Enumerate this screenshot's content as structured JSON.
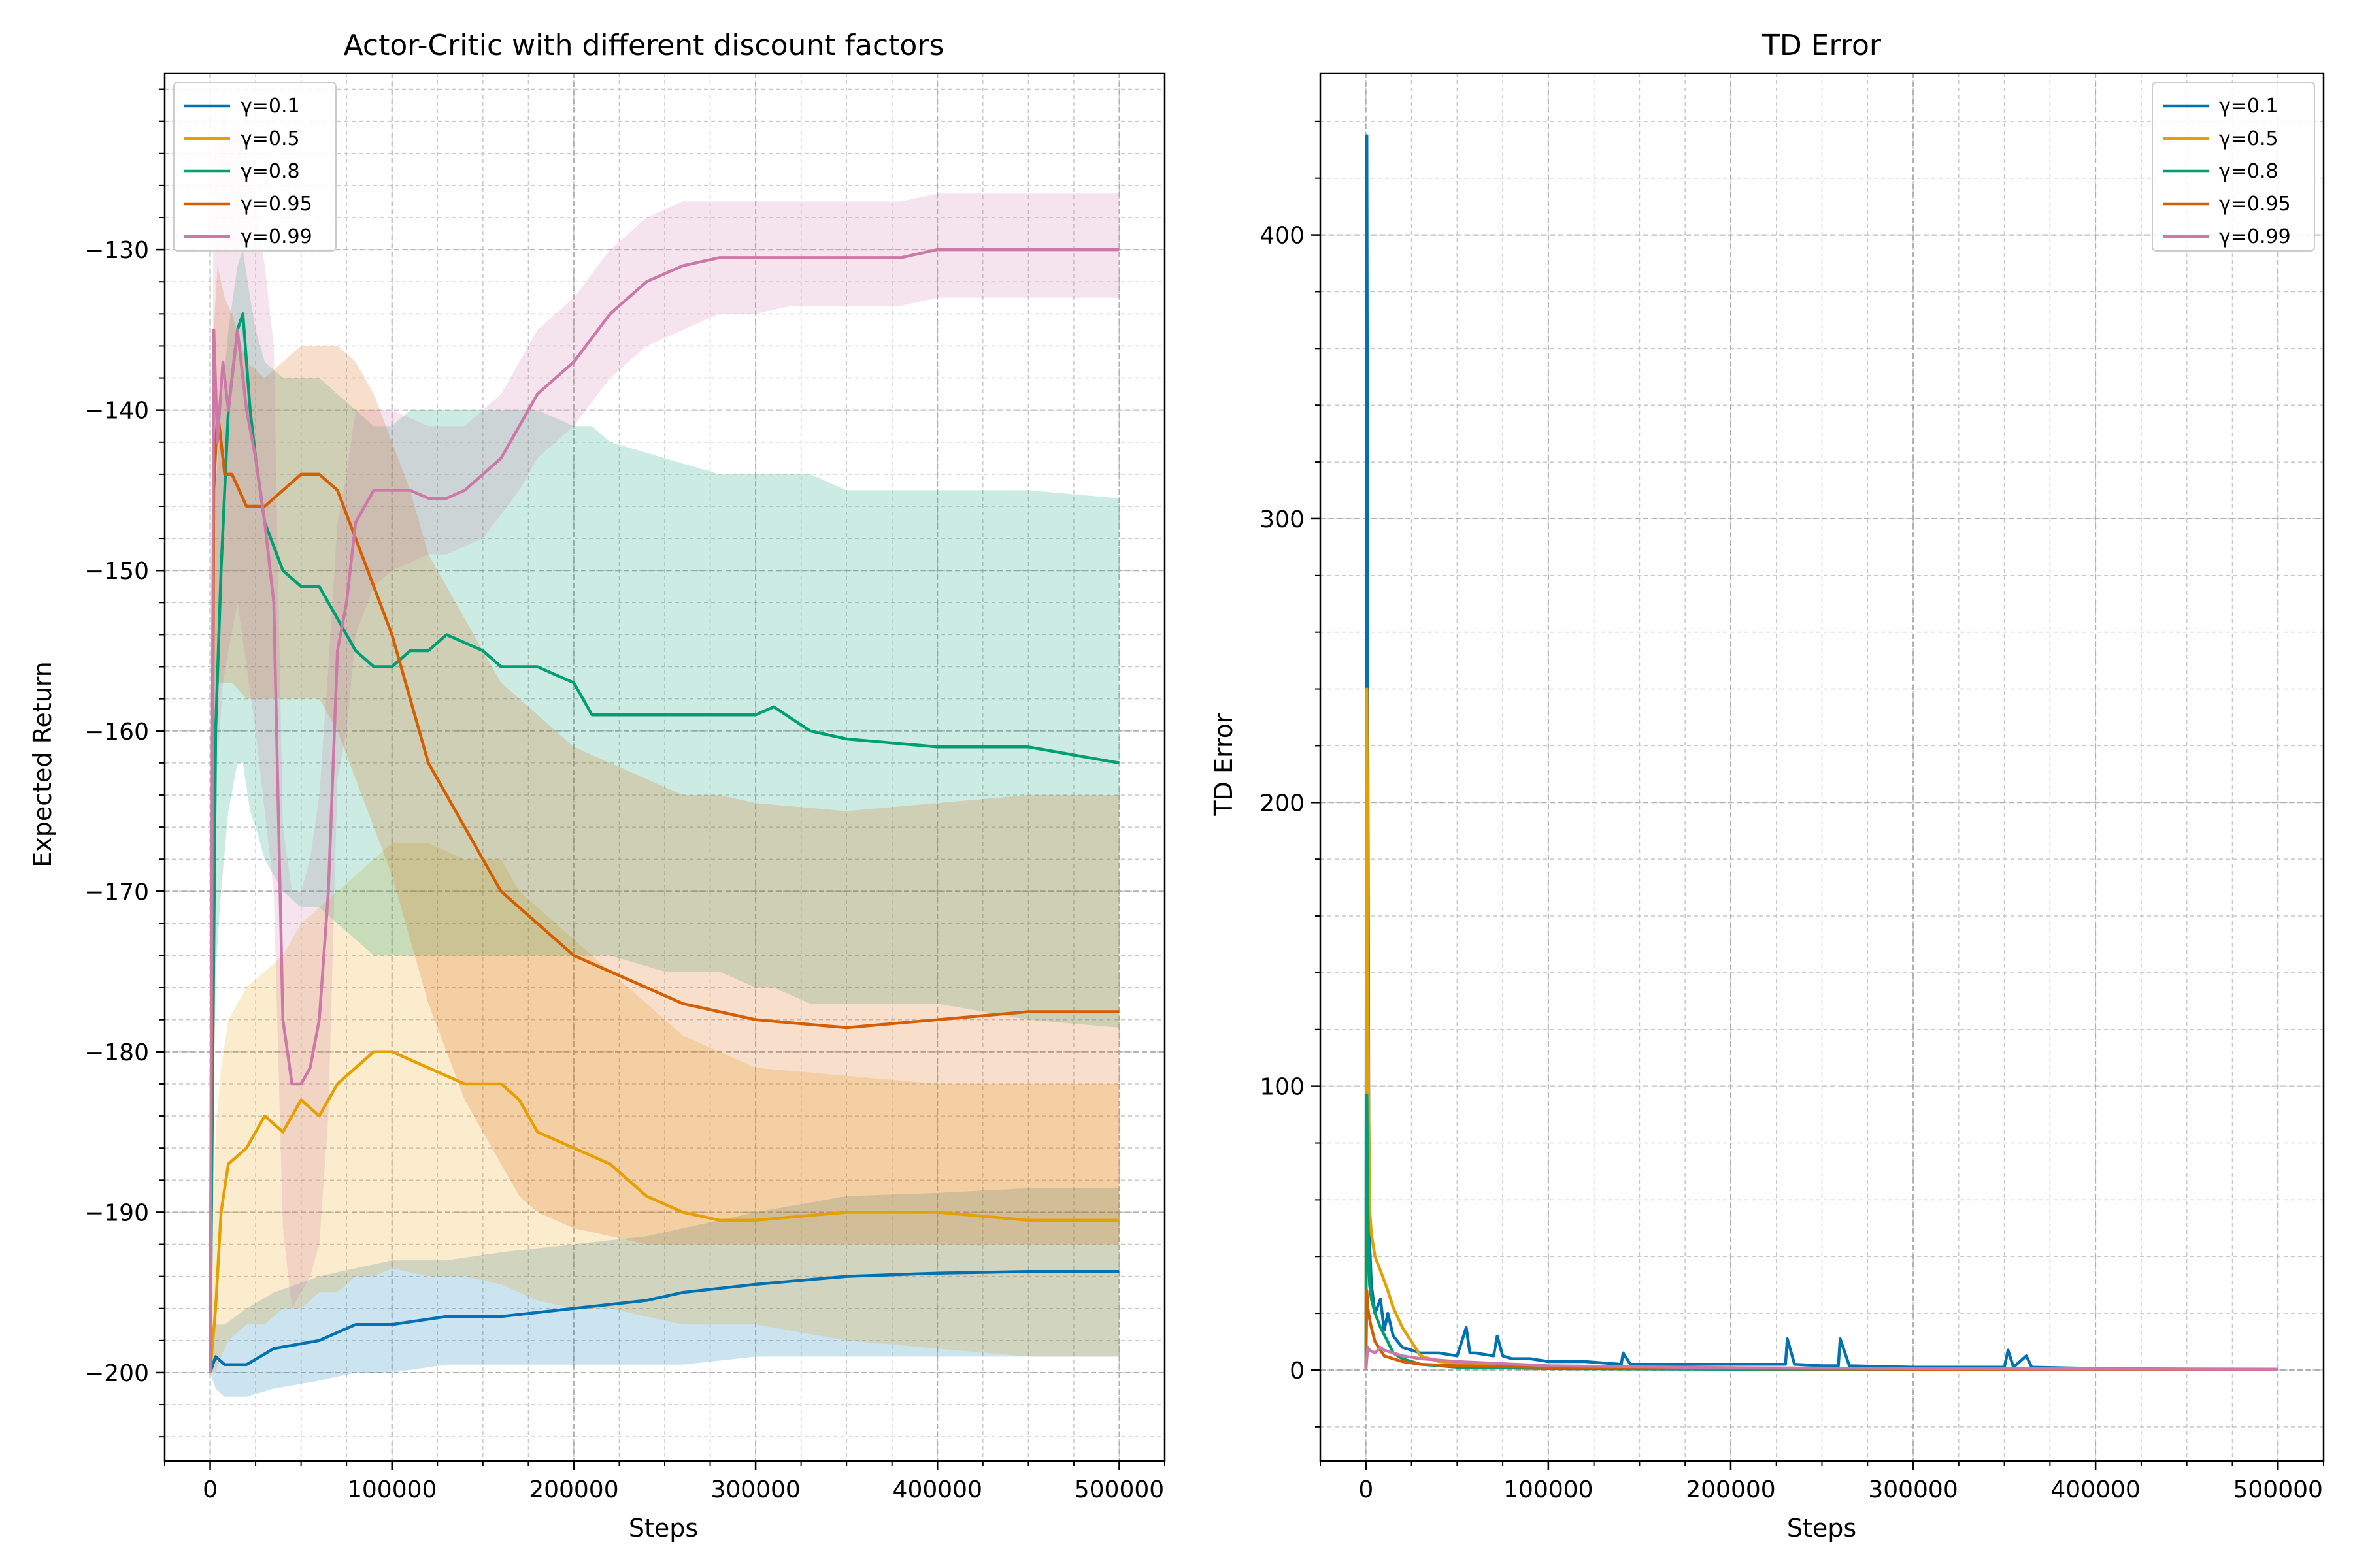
{
  "colors": {
    "g0.1": "#0072B2",
    "g0.5": "#E69F00",
    "g0.8": "#009E73",
    "g0.95": "#D55E00",
    "g0.99": "#CC79A7"
  },
  "chart_data": [
    {
      "type": "line",
      "title": "Actor-Critic with different discount factors",
      "xlabel": "Steps",
      "ylabel": "Expected Return",
      "xlim": [
        -25000,
        525000
      ],
      "ylim": [
        -205.5,
        -119
      ],
      "xticks": [
        0,
        100000,
        200000,
        300000,
        400000,
        500000
      ],
      "yticks": [
        -200,
        -190,
        -180,
        -170,
        -160,
        -150,
        -140,
        -130
      ],
      "grid": true,
      "minor_grid": true,
      "bands": true,
      "legend_position": "upper-left",
      "series": [
        {
          "name": "γ=0.1",
          "color_key": "g0.1",
          "x": [
            0,
            3000,
            8000,
            20000,
            35000,
            60000,
            80000,
            100000,
            130000,
            160000,
            200000,
            240000,
            260000,
            300000,
            350000,
            400000,
            450000,
            500000
          ],
          "y": [
            -200,
            -199,
            -199.5,
            -199.5,
            -198.5,
            -198,
            -197,
            -197,
            -196.5,
            -196.5,
            -196,
            -195.5,
            -195,
            -194.5,
            -194,
            -193.8,
            -193.7,
            -193.7
          ],
          "lower": [
            -200,
            -201,
            -201.5,
            -201.5,
            -201,
            -200.5,
            -200,
            -200,
            -199.5,
            -199.5,
            -199.5,
            -199.5,
            -199.5,
            -199,
            -199,
            -199,
            -199,
            -199
          ],
          "upper": [
            -200,
            -197,
            -197,
            -196,
            -195,
            -194,
            -193.5,
            -193,
            -193,
            -192.5,
            -192,
            -191.5,
            -191,
            -190,
            -189,
            -188.8,
            -188.5,
            -188.5
          ]
        },
        {
          "name": "γ=0.5",
          "color_key": "g0.5",
          "x": [
            0,
            3000,
            6000,
            10000,
            20000,
            30000,
            40000,
            50000,
            60000,
            70000,
            80000,
            90000,
            100000,
            120000,
            140000,
            160000,
            170000,
            180000,
            200000,
            220000,
            240000,
            260000,
            280000,
            300000,
            350000,
            400000,
            450000,
            500000
          ],
          "y": [
            -200,
            -196,
            -190,
            -187,
            -186,
            -184,
            -185,
            -183,
            -184,
            -182,
            -181,
            -180,
            -180,
            -181,
            -182,
            -182,
            -183,
            -185,
            -186,
            -187,
            -189,
            -190,
            -190.5,
            -190.5,
            -190,
            -190,
            -190.5,
            -190.5
          ],
          "lower": [
            -200,
            -200,
            -199,
            -198,
            -197,
            -197,
            -196,
            -196,
            -195,
            -195,
            -194,
            -194,
            -193.5,
            -194,
            -194,
            -194.5,
            -195,
            -195.5,
            -196,
            -196,
            -196.5,
            -197,
            -197,
            -197,
            -198,
            -198.5,
            -199,
            -199
          ],
          "upper": [
            -200,
            -185,
            -181,
            -178,
            -176,
            -175,
            -174,
            -172,
            -171,
            -170,
            -169,
            -168,
            -167,
            -167,
            -168,
            -168,
            -170,
            -171,
            -173,
            -175,
            -177,
            -179,
            -180,
            -181,
            -181.5,
            -182,
            -182,
            -182
          ]
        },
        {
          "name": "γ=0.8",
          "color_key": "g0.8",
          "x": [
            0,
            3000,
            6000,
            10000,
            15000,
            18000,
            22000,
            25000,
            30000,
            40000,
            50000,
            60000,
            70000,
            80000,
            90000,
            100000,
            110000,
            120000,
            130000,
            150000,
            160000,
            180000,
            200000,
            210000,
            220000,
            250000,
            280000,
            300000,
            310000,
            330000,
            350000,
            400000,
            450000,
            500000
          ],
          "y": [
            -200,
            -160,
            -150,
            -140,
            -135,
            -134,
            -140,
            -143,
            -147,
            -150,
            -151,
            -151,
            -153,
            -155,
            -156,
            -156,
            -155,
            -155,
            -154,
            -155,
            -156,
            -156,
            -157,
            -159,
            -159,
            -159,
            -159,
            -159,
            -158.5,
            -160,
            -160.5,
            -161,
            -161,
            -162
          ],
          "lower": [
            -200,
            -175,
            -170,
            -165,
            -162,
            -162,
            -165,
            -166,
            -168,
            -170,
            -171,
            -171,
            -172,
            -173,
            -174,
            -174,
            -174,
            -174,
            -174,
            -174,
            -174,
            -174,
            -174,
            -174,
            -174,
            -175,
            -175,
            -176,
            -176,
            -177,
            -177,
            -177,
            -178,
            -178.5
          ],
          "upper": [
            -200,
            -145,
            -140,
            -135,
            -131,
            -130,
            -133,
            -135,
            -137,
            -138,
            -138,
            -138,
            -139,
            -140,
            -141,
            -141,
            -140,
            -140,
            -140,
            -140,
            -140,
            -140,
            -141,
            -141,
            -142,
            -143,
            -144,
            -144,
            -144,
            -144,
            -145,
            -145,
            -145,
            -145.5
          ]
        },
        {
          "name": "γ=0.95",
          "color_key": "g0.95",
          "x": [
            0,
            2000,
            4000,
            8000,
            12000,
            20000,
            30000,
            40000,
            50000,
            60000,
            70000,
            80000,
            90000,
            100000,
            110000,
            120000,
            130000,
            140000,
            150000,
            160000,
            170000,
            180000,
            200000,
            220000,
            240000,
            260000,
            280000,
            300000,
            350000,
            400000,
            450000,
            500000
          ],
          "y": [
            -200,
            -145,
            -140,
            -144,
            -144,
            -146,
            -146,
            -145,
            -144,
            -144,
            -145,
            -148,
            -151,
            -154,
            -158,
            -162,
            -164,
            -166,
            -168,
            -170,
            -171,
            -172,
            -174,
            -175,
            -176,
            -177,
            -177.5,
            -178,
            -178.5,
            -178,
            -177.5,
            -177.5
          ],
          "lower": [
            -200,
            -160,
            -157,
            -157,
            -157,
            -158,
            -158,
            -158,
            -158,
            -158,
            -160,
            -163,
            -166,
            -169,
            -173,
            -177,
            -180,
            -183,
            -185,
            -187,
            -189,
            -190,
            -191,
            -191.5,
            -192,
            -192,
            -192,
            -192,
            -192,
            -192,
            -192,
            -192
          ],
          "upper": [
            -200,
            -135,
            -131,
            -133,
            -134,
            -137,
            -138,
            -137,
            -136,
            -136,
            -136,
            -137,
            -139,
            -142,
            -145,
            -149,
            -151,
            -153,
            -155,
            -157,
            -158,
            -159,
            -161,
            -162,
            -163,
            -164,
            -164,
            -164.5,
            -165,
            -164.5,
            -164,
            -164
          ]
        },
        {
          "name": "γ=0.99",
          "color_key": "g0.99",
          "x": [
            0,
            2000,
            4000,
            7000,
            10000,
            15000,
            20000,
            25000,
            30000,
            35000,
            40000,
            45000,
            50000,
            55000,
            60000,
            65000,
            70000,
            75000,
            80000,
            90000,
            100000,
            110000,
            120000,
            130000,
            140000,
            150000,
            160000,
            170000,
            180000,
            190000,
            200000,
            220000,
            240000,
            260000,
            280000,
            300000,
            320000,
            350000,
            380000,
            400000,
            420000,
            450000,
            500000
          ],
          "y": [
            -200,
            -135,
            -142,
            -137,
            -140,
            -135,
            -140,
            -143,
            -147,
            -152,
            -178,
            -182,
            -182,
            -181,
            -178,
            -170,
            -155,
            -152,
            -147,
            -145,
            -145,
            -145,
            -145.5,
            -145.5,
            -145,
            -144,
            -143,
            -141,
            -139,
            -138,
            -137,
            -134,
            -132,
            -131,
            -130.5,
            -130.5,
            -130.5,
            -130.5,
            -130.5,
            -130,
            -130,
            -130,
            -130
          ],
          "lower": [
            -200,
            -160,
            -162,
            -157,
            -155,
            -152,
            -156,
            -160,
            -165,
            -170,
            -191,
            -196,
            -195,
            -194,
            -192,
            -184,
            -163,
            -160,
            -154,
            -151,
            -150,
            -149.5,
            -149,
            -149,
            -148.5,
            -148,
            -146.5,
            -145,
            -143,
            -142,
            -141,
            -138,
            -136,
            -135,
            -134,
            -134,
            -133.5,
            -133.5,
            -133.5,
            -133,
            -133,
            -133,
            -133
          ],
          "upper": [
            -200,
            -118,
            -125,
            -120,
            -123,
            -122,
            -124,
            -127,
            -131,
            -136,
            -166,
            -170,
            -170,
            -168,
            -164,
            -156,
            -147,
            -144,
            -140,
            -140,
            -140,
            -140.5,
            -141,
            -141,
            -141,
            -140,
            -139,
            -137,
            -135,
            -134,
            -133,
            -130,
            -128,
            -127,
            -127,
            -127,
            -127,
            -127,
            -127,
            -126.5,
            -126.5,
            -126.5,
            -126.5
          ]
        }
      ]
    },
    {
      "type": "line",
      "title": "TD Error",
      "xlabel": "Steps",
      "ylabel": "TD Error",
      "xlim": [
        -25000,
        525000
      ],
      "ylim": [
        -32,
        457
      ],
      "xticks": [
        0,
        100000,
        200000,
        300000,
        400000,
        500000
      ],
      "yticks": [
        0,
        100,
        200,
        300,
        400
      ],
      "grid": true,
      "minor_grid": true,
      "legend_position": "upper-right",
      "series": [
        {
          "name": "γ=0.1",
          "color_key": "g0.1",
          "x": [
            0,
            500,
            1000,
            1500,
            2000,
            3000,
            5000,
            8000,
            10000,
            12000,
            15000,
            20000,
            30000,
            40000,
            50000,
            55000,
            57000,
            60000,
            70000,
            72000,
            75000,
            80000,
            90000,
            100000,
            120000,
            140000,
            141000,
            145000,
            160000,
            180000,
            200000,
            220000,
            230000,
            231000,
            235000,
            250000,
            259000,
            260000,
            265000,
            300000,
            350000,
            352000,
            355000,
            362000,
            365000,
            400000,
            450000,
            500000
          ],
          "y": [
            0,
            435,
            240,
            100,
            45,
            30,
            20,
            25,
            14,
            20,
            12,
            8,
            6,
            6,
            5,
            15,
            6,
            6,
            5,
            12,
            5,
            4,
            4,
            3,
            3,
            2,
            6,
            2,
            2,
            2,
            2,
            2,
            2,
            11,
            2,
            1.5,
            1.5,
            11,
            1.5,
            1,
            1,
            7,
            1,
            5,
            1,
            0.5,
            0.3,
            0.2
          ]
        },
        {
          "name": "γ=0.5",
          "color_key": "g0.5",
          "x": [
            0,
            500,
            1000,
            1500,
            2000,
            3000,
            5000,
            8000,
            12000,
            15000,
            20000,
            25000,
            30000,
            40000,
            60000,
            100000,
            200000,
            300000,
            500000
          ],
          "y": [
            0,
            240,
            150,
            95,
            57,
            48,
            40,
            35,
            28,
            22,
            15,
            10,
            5,
            3,
            2,
            1,
            0.5,
            0.3,
            0.1
          ]
        },
        {
          "name": "γ=0.8",
          "color_key": "g0.8",
          "x": [
            0,
            500,
            1000,
            1500,
            2000,
            3000,
            5000,
            8000,
            12000,
            15000,
            20000,
            30000,
            50000,
            100000,
            200000,
            300000,
            500000
          ],
          "y": [
            0,
            97,
            60,
            40,
            30,
            25,
            20,
            15,
            10,
            6,
            4,
            2,
            1,
            0.5,
            0.3,
            0.2,
            0.1
          ]
        },
        {
          "name": "γ=0.95",
          "color_key": "g0.95",
          "x": [
            0,
            500,
            1000,
            2000,
            3000,
            5000,
            8000,
            10000,
            15000,
            20000,
            30000,
            50000,
            100000,
            200000,
            300000,
            500000
          ],
          "y": [
            0,
            28,
            22,
            18,
            15,
            10,
            7,
            5,
            4,
            3,
            2,
            1.5,
            1,
            0.5,
            0.3,
            0.2
          ]
        },
        {
          "name": "γ=0.99",
          "color_key": "g0.99",
          "x": [
            0,
            1000,
            2000,
            5000,
            8000,
            10000,
            15000,
            20000,
            30000,
            50000,
            100000,
            200000,
            300000,
            500000
          ],
          "y": [
            0,
            8,
            7,
            6,
            8,
            7,
            6,
            5,
            4,
            3,
            1.5,
            0.8,
            0.5,
            0.3
          ]
        }
      ]
    }
  ]
}
